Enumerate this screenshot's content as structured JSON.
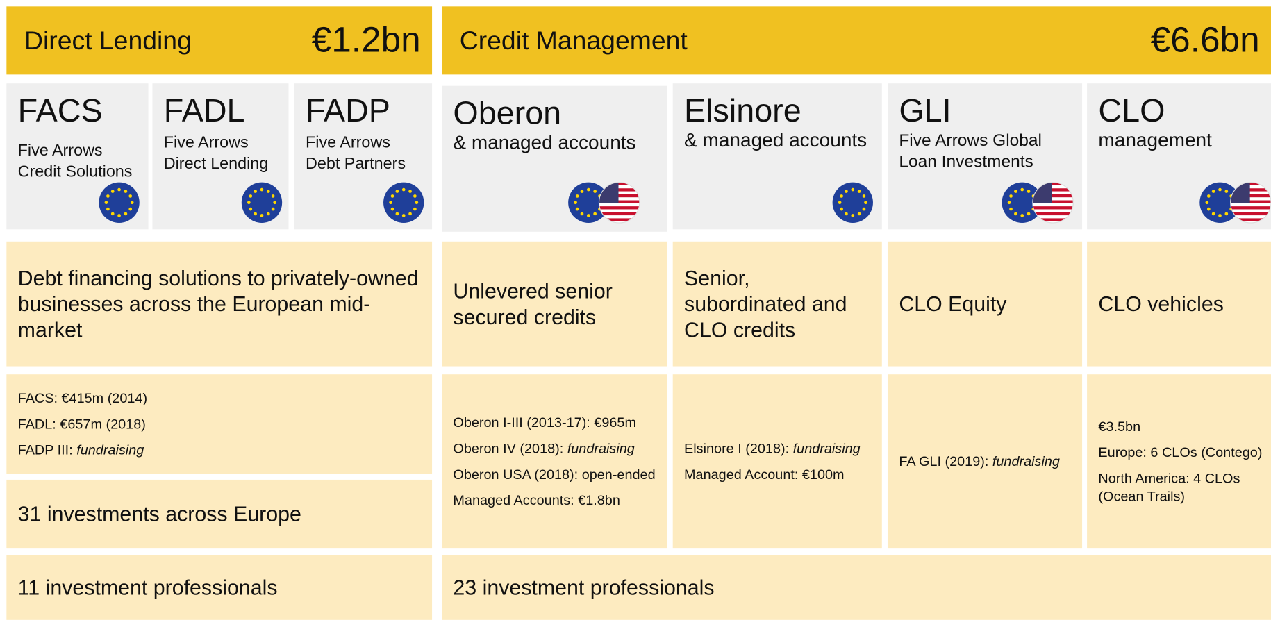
{
  "direct_lending": {
    "title": "Direct Lending",
    "amount": "€1.2bn",
    "funds": [
      {
        "code": "FACS",
        "name_lines": [
          "Five Arrows",
          "Credit Solutions"
        ]
      },
      {
        "code": "FADL",
        "name_lines": [
          "Five Arrows",
          "Direct Lending"
        ]
      },
      {
        "code": "FADP",
        "name_lines": [
          "Five Arrows",
          "Debt Partners"
        ]
      }
    ],
    "description": "Debt financing solutions to privately-owned businesses across the European mid-market",
    "track_record": [
      {
        "text": "FACS: €415m (2014)"
      },
      {
        "text": "FADL: €657m (2018)"
      },
      {
        "text": "FADP III: ",
        "em": "fundraising"
      }
    ],
    "investments": "31 investments across Europe",
    "professionals": "11 investment professionals"
  },
  "credit_management": {
    "title": "Credit Management",
    "amount": "€6.6bn",
    "funds": [
      {
        "code": "Oberon",
        "subtitle_lines": [
          "& managed accounts"
        ],
        "description": "Unlevered senior secured credits",
        "track_record": [
          {
            "text": "Oberon I-III (2013-17): €965m"
          },
          {
            "text": "Oberon IV (2018): ",
            "em": "fundraising"
          },
          {
            "text": "Oberon USA (2018): open-ended"
          },
          {
            "text": "Managed Accounts: €1.8bn"
          }
        ]
      },
      {
        "code": "Elsinore",
        "subtitle_lines": [
          "& managed accounts"
        ],
        "description": "Senior, subordinated and CLO credits",
        "track_record": [
          {
            "text": "Elsinore I (2018): ",
            "em": "fundraising"
          },
          {
            "text": "Managed Account: €100m"
          }
        ]
      },
      {
        "code": "GLI",
        "subtitle_lines": [
          "Five Arrows Global",
          "Loan Investments"
        ],
        "description": "CLO Equity",
        "track_record": [
          {
            "text": "FA GLI (2019): ",
            "em": "fundraising"
          }
        ]
      },
      {
        "code": "CLO",
        "subtitle_lines": [
          "management"
        ],
        "description": "CLO vehicles",
        "track_record": [
          {
            "text": "€3.5bn"
          },
          {
            "text": "Europe: 6 CLOs (Contego)"
          },
          {
            "text": "North America: 4 CLOs (Ocean Trails)"
          }
        ]
      }
    ],
    "professionals": "23 investment professionals"
  }
}
